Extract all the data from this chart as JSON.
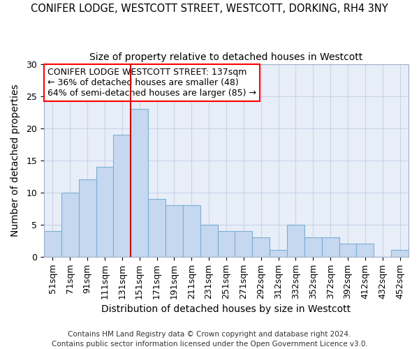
{
  "title1": "CONIFER LODGE, WESTCOTT STREET, WESTCOTT, DORKING, RH4 3NY",
  "title2": "Size of property relative to detached houses in Westcott",
  "xlabel": "Distribution of detached houses by size in Westcott",
  "ylabel": "Number of detached properties",
  "categories": [
    "51sqm",
    "71sqm",
    "91sqm",
    "111sqm",
    "131sqm",
    "151sqm",
    "171sqm",
    "191sqm",
    "211sqm",
    "231sqm",
    "251sqm",
    "271sqm",
    "292sqm",
    "312sqm",
    "332sqm",
    "352sqm",
    "372sqm",
    "392sqm",
    "412sqm",
    "432sqm",
    "452sqm"
  ],
  "values": [
    4,
    10,
    12,
    14,
    19,
    23,
    9,
    8,
    8,
    5,
    4,
    4,
    3,
    1,
    5,
    3,
    3,
    2,
    2,
    0,
    1
  ],
  "bar_color": "#c5d8ef",
  "bar_edge_color": "#7bafd4",
  "vline_color": "#cc0000",
  "ylim": [
    0,
    30
  ],
  "yticks": [
    0,
    5,
    10,
    15,
    20,
    25,
    30
  ],
  "annotation_text": "CONIFER LODGE WESTCOTT STREET: 137sqm\n← 36% of detached houses are smaller (48)\n64% of semi-detached houses are larger (85) →",
  "footer1": "Contains HM Land Registry data © Crown copyright and database right 2024.",
  "footer2": "Contains public sector information licensed under the Open Government Licence v3.0.",
  "bg_color": "#ffffff",
  "plot_bg_color": "#e8eef8",
  "grid_color": "#c8d4e8",
  "title1_fontsize": 10.5,
  "title2_fontsize": 10,
  "axis_label_fontsize": 10,
  "tick_fontsize": 9,
  "annotation_fontsize": 9,
  "footer_fontsize": 7.5
}
